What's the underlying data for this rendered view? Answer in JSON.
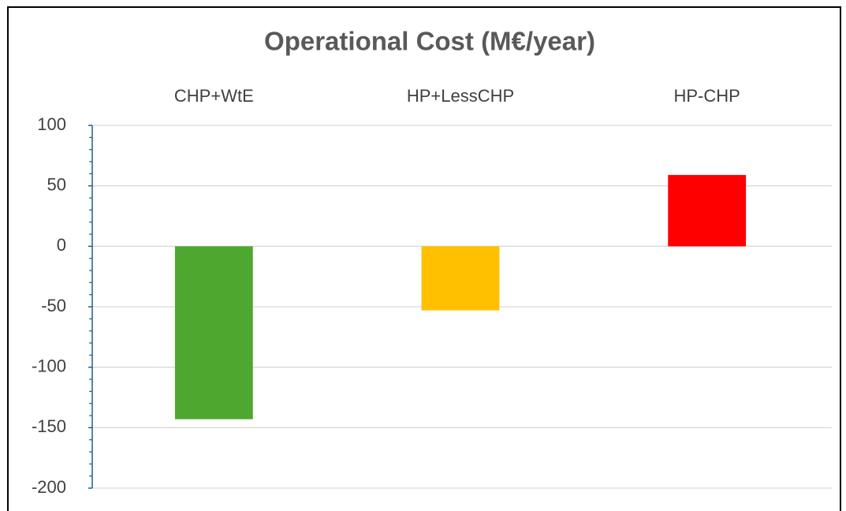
{
  "chart_data": {
    "type": "bar",
    "title": "Operational Cost (M€/year)",
    "categories": [
      "CHP+WtE",
      "HP+LessCHP",
      "HP-CHP"
    ],
    "values": [
      -143,
      -53,
      59
    ],
    "colors": [
      "#4ea72e",
      "#ffc000",
      "#ff0000"
    ],
    "ylim": [
      -200,
      100
    ],
    "yticks": [
      -200,
      -150,
      -100,
      -50,
      0,
      50,
      100
    ],
    "yminorticks": [
      -190,
      -180,
      -170,
      -160,
      -140,
      -130,
      -120,
      -110,
      -90,
      -80,
      -70,
      -60,
      -40,
      -30,
      -20,
      -10,
      10,
      20,
      30,
      40,
      60,
      70,
      80,
      90
    ],
    "grid": true,
    "category_labels": "top"
  }
}
